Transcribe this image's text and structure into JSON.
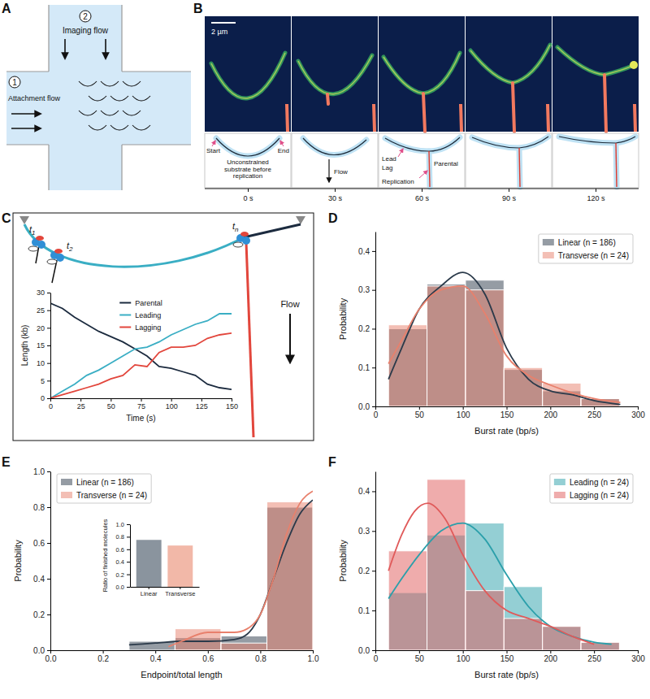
{
  "panel_letters": [
    "A",
    "B",
    "C",
    "D",
    "E",
    "F"
  ],
  "diagrams": {
    "A": {
      "inlet_1": "1",
      "attachment": "Attachment flow",
      "inlet_2": "2",
      "imaging": "Imaging flow"
    },
    "B": {
      "scale_bar": "2 µm",
      "start": "Start",
      "end": "End",
      "unconstrained": "Unconstrained substrate before replication",
      "flow": "Flow",
      "lead": "Lead",
      "lag": "Lag",
      "parental": "Parental",
      "replication": "Replication",
      "times": [
        "0 s",
        "30 s",
        "60 s",
        "90 s",
        "120 s"
      ]
    },
    "C": {
      "t_labels": [
        "t1",
        "t2",
        "tn"
      ],
      "flow": "Flow"
    }
  },
  "chart_data": [
    {
      "type": "line",
      "x_label": "Time (s)",
      "y_label": "Length (kb)",
      "x": [
        0,
        10,
        20,
        30,
        40,
        50,
        60,
        70,
        80,
        90,
        100,
        110,
        120,
        130,
        140,
        150
      ],
      "series": [
        {
          "name": "Parental",
          "color": "#1c2b3f",
          "values": [
            27,
            25.5,
            23,
            21,
            19,
            17.5,
            16,
            14,
            12,
            9,
            8.5,
            7.5,
            6.5,
            4,
            3,
            2.5
          ]
        },
        {
          "name": "Leading",
          "color": "#3aaec4",
          "values": [
            0,
            2,
            4,
            6.5,
            8,
            10,
            12,
            14,
            14.5,
            16,
            18,
            19.5,
            21,
            22,
            24,
            24
          ]
        },
        {
          "name": "Lagging",
          "color": "#e2463c",
          "values": [
            0,
            1,
            2,
            3,
            4,
            5.5,
            6.5,
            9.5,
            9,
            13,
            14.5,
            14.5,
            15,
            17,
            18,
            18.5
          ]
        }
      ],
      "xlim": [
        0,
        150
      ],
      "xticks": [
        0,
        25,
        50,
        75,
        100,
        125,
        150
      ],
      "ylim": [
        0,
        30
      ],
      "yticks": [
        0,
        5,
        10,
        15,
        20,
        25,
        30
      ],
      "legend": "upper center"
    },
    {
      "type": "histogram",
      "x_label": "Burst rate (bp/s)",
      "y_label": "Probability",
      "bins": [
        15,
        59,
        103,
        147,
        191,
        235,
        279
      ],
      "series": [
        {
          "name": "Linear (n = 186)",
          "color": "#2b3a4a",
          "values": [
            0.2,
            0.315,
            0.325,
            0.095,
            0.04,
            0.02
          ],
          "curve": {
            "x": [
              15,
              30,
              50,
              75,
              100,
              125,
              150,
              175,
              200,
              225,
              250,
              280
            ],
            "values": [
              0.07,
              0.15,
              0.25,
              0.31,
              0.345,
              0.29,
              0.15,
              0.07,
              0.04,
              0.03,
              0.015,
              0.005
            ]
          }
        },
        {
          "name": "Transverse (n = 24)",
          "color": "#e8806c",
          "values": [
            0.21,
            0.31,
            0.3,
            0.1,
            0.06,
            0.02
          ],
          "curve": {
            "x": [
              15,
              30,
              50,
              75,
              100,
              125,
              150,
              175,
              200,
              225,
              250,
              280
            ],
            "values": [
              0.11,
              0.17,
              0.25,
              0.3,
              0.31,
              0.24,
              0.13,
              0.08,
              0.055,
              0.035,
              0.02,
              0.01
            ]
          }
        }
      ],
      "xlim": [
        0,
        300
      ],
      "xticks": [
        0,
        50,
        100,
        150,
        200,
        250,
        300
      ],
      "ylim": [
        0,
        0.45
      ],
      "yticks": [
        {
          "value": 0,
          "label": "0.0"
        },
        0.1,
        0.2,
        0.3,
        0.4
      ],
      "legend": "upper right"
    },
    {
      "type": "histogram",
      "x_label": "Endpoint/total length",
      "y_label": "Probability",
      "bins": [
        0.3,
        0.475,
        0.65,
        0.825,
        1.0
      ],
      "series": [
        {
          "name": "Linear (n = 186)",
          "color": "#2b3a4a",
          "values": [
            0.05,
            0.07,
            0.08,
            0.8
          ],
          "curve": {
            "x": [
              0.3,
              0.4,
              0.5,
              0.6,
              0.7,
              0.75,
              0.8,
              0.85,
              0.9,
              0.95,
              1.0
            ],
            "values": [
              0.03,
              0.04,
              0.05,
              0.05,
              0.06,
              0.09,
              0.2,
              0.4,
              0.6,
              0.76,
              0.84
            ]
          }
        },
        {
          "name": "Transverse (n = 24)",
          "color": "#e8806c",
          "values": [
            0,
            0.12,
            0.04,
            0.83
          ],
          "curve": {
            "x": [
              0.45,
              0.5,
              0.6,
              0.7,
              0.75,
              0.8,
              0.85,
              0.9,
              0.95,
              1.0
            ],
            "values": [
              0.02,
              0.05,
              0.1,
              0.1,
              0.12,
              0.2,
              0.4,
              0.65,
              0.82,
              0.89
            ]
          }
        }
      ],
      "xlim": [
        0,
        1
      ],
      "xticks": [
        {
          "value": 0,
          "label": "0.0"
        },
        0.2,
        0.4,
        0.6,
        0.8,
        {
          "value": 1,
          "label": "1.0"
        }
      ],
      "ylim": [
        0,
        1
      ],
      "yticks": [
        {
          "value": 0,
          "label": "0.0"
        },
        0.2,
        0.4,
        0.6,
        0.8,
        {
          "value": 1,
          "label": "1.0"
        }
      ],
      "legend": "upper left"
    },
    {
      "type": "bar",
      "y_label": "Ratio of finished molecules",
      "categories": [
        "Linear",
        "Transverse"
      ],
      "values": [
        0.75,
        0.66
      ],
      "colors": [
        "#8a949e",
        "#f2b8a8"
      ],
      "ylim": [
        0,
        1
      ],
      "yticks": [
        {
          "value": 0,
          "label": "0.0"
        },
        0.2,
        0.4,
        0.6,
        0.8,
        {
          "value": 1,
          "label": "1.0"
        }
      ]
    },
    {
      "type": "histogram",
      "x_label": "Burst rate (bp/s)",
      "y_label": "Probability",
      "bins": [
        15,
        59,
        103,
        147,
        191,
        235,
        279
      ],
      "series": [
        {
          "name": "Leading (n = 24)",
          "color": "#2a9faa",
          "values": [
            0.145,
            0.29,
            0.32,
            0.16,
            0.06,
            0.02
          ],
          "curve": {
            "x": [
              15,
              30,
              50,
              75,
              100,
              125,
              150,
              175,
              200,
              225,
              250,
              270
            ],
            "values": [
              0.13,
              0.18,
              0.24,
              0.3,
              0.32,
              0.28,
              0.19,
              0.11,
              0.06,
              0.035,
              0.02,
              0.015
            ]
          }
        },
        {
          "name": "Lagging (n = 24)",
          "color": "#e05a5a",
          "values": [
            0.25,
            0.43,
            0.15,
            0.08,
            0.06,
            0.02
          ],
          "curve": {
            "x": [
              15,
              30,
              45,
              60,
              80,
              100,
              125,
              150,
              175,
              200,
              225,
              250
            ],
            "values": [
              0.2,
              0.29,
              0.35,
              0.37,
              0.33,
              0.24,
              0.15,
              0.1,
              0.08,
              0.06,
              0.035,
              0.015
            ]
          }
        }
      ],
      "xlim": [
        0,
        300
      ],
      "xticks": [
        0,
        50,
        100,
        150,
        200,
        250,
        300
      ],
      "ylim": [
        0,
        0.45
      ],
      "yticks": [
        {
          "value": 0,
          "label": "0.0"
        },
        0.1,
        0.2,
        0.3,
        0.4
      ],
      "legend": "upper right"
    }
  ]
}
